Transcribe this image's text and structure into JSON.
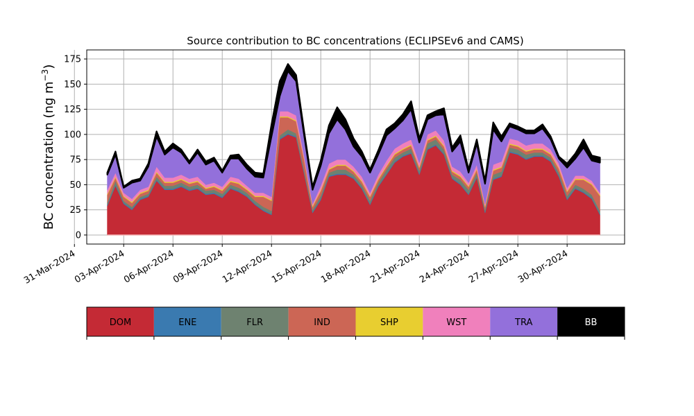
{
  "chart_data": {
    "type": "area",
    "stacked": true,
    "title": "Source contribution to BC concentrations (ECLIPSEv6 and CAMS)",
    "ylabel": "BC concentration (ng m",
    "ylabel_superscript": "−3",
    "ylabel_suffix": ")",
    "xlabel": "",
    "grid": true,
    "ylim": [
      -9,
      184
    ],
    "y_ticks": [
      0,
      25,
      50,
      75,
      100,
      125,
      150,
      175
    ],
    "xlim": [
      "2024-03-31T18:00",
      "2024-05-03T12:00"
    ],
    "x_ticks": [
      "2024-03-31",
      "2024-04-03",
      "2024-04-06",
      "2024-04-09",
      "2024-04-12",
      "2024-04-15",
      "2024-04-18",
      "2024-04-21",
      "2024-04-24",
      "2024-04-27",
      "2024-04-30"
    ],
    "x_tick_labels": [
      "31-Mar-2024",
      "03-Apr-2024",
      "06-Apr-2024",
      "09-Apr-2024",
      "12-Apr-2024",
      "15-Apr-2024",
      "18-Apr-2024",
      "21-Apr-2024",
      "24-Apr-2024",
      "27-Apr-2024",
      "30-Apr-2024"
    ],
    "legend_position": "below",
    "x": [
      "2024-04-02T00:00",
      "2024-04-02T12:00",
      "2024-04-03T00:00",
      "2024-04-03T12:00",
      "2024-04-04T00:00",
      "2024-04-04T12:00",
      "2024-04-05T00:00",
      "2024-04-05T12:00",
      "2024-04-06T00:00",
      "2024-04-06T12:00",
      "2024-04-07T00:00",
      "2024-04-07T12:00",
      "2024-04-08T00:00",
      "2024-04-08T12:00",
      "2024-04-09T00:00",
      "2024-04-09T12:00",
      "2024-04-10T00:00",
      "2024-04-10T12:00",
      "2024-04-11T00:00",
      "2024-04-11T12:00",
      "2024-04-12T00:00",
      "2024-04-12T12:00",
      "2024-04-13T00:00",
      "2024-04-13T12:00",
      "2024-04-14T00:00",
      "2024-04-14T12:00",
      "2024-04-15T00:00",
      "2024-04-15T12:00",
      "2024-04-16T00:00",
      "2024-04-16T12:00",
      "2024-04-17T00:00",
      "2024-04-17T12:00",
      "2024-04-18T00:00",
      "2024-04-18T12:00",
      "2024-04-19T00:00",
      "2024-04-19T12:00",
      "2024-04-20T00:00",
      "2024-04-20T12:00",
      "2024-04-21T00:00",
      "2024-04-21T12:00",
      "2024-04-22T00:00",
      "2024-04-22T12:00",
      "2024-04-23T00:00",
      "2024-04-23T12:00",
      "2024-04-24T00:00",
      "2024-04-24T12:00",
      "2024-04-25T00:00",
      "2024-04-25T12:00",
      "2024-04-26T00:00",
      "2024-04-26T12:00",
      "2024-04-27T00:00",
      "2024-04-27T12:00",
      "2024-04-28T00:00",
      "2024-04-28T12:00",
      "2024-04-29T00:00",
      "2024-04-29T12:00",
      "2024-04-30T00:00",
      "2024-04-30T12:00",
      "2024-05-01T00:00",
      "2024-05-01T12:00",
      "2024-05-02T00:00"
    ],
    "series": [
      {
        "name": "DOM",
        "color": "#c42a35",
        "values": [
          29,
          49,
          31,
          25,
          35,
          38,
          54,
          45,
          45,
          48,
          44,
          46,
          40,
          41,
          37,
          46,
          43,
          38,
          30,
          24,
          20,
          95,
          100,
          97,
          60,
          22,
          35,
          58,
          60,
          60,
          56,
          46,
          30,
          48,
          60,
          72,
          78,
          81,
          60,
          85,
          89,
          80,
          56,
          50,
          40,
          57,
          22,
          55,
          58,
          82,
          80,
          75,
          78,
          78,
          73,
          58,
          35,
          46,
          42,
          36,
          20
        ]
      },
      {
        "name": "ENE",
        "color": "#3a7ab0",
        "values": [
          1,
          1,
          1,
          1,
          1,
          1,
          1,
          1,
          1,
          1,
          1,
          1,
          1,
          1,
          1,
          1,
          1,
          1,
          1,
          1,
          1,
          1,
          1,
          1,
          1,
          1,
          1,
          1,
          1,
          1,
          1,
          1,
          1,
          1,
          1,
          1,
          1,
          1,
          1,
          1,
          1,
          1,
          1,
          1,
          1,
          1,
          1,
          1,
          1,
          1,
          1,
          1,
          1,
          1,
          1,
          1,
          1,
          1,
          1,
          1,
          1
        ]
      },
      {
        "name": "FLR",
        "color": "#6e8270",
        "values": [
          2,
          4,
          2,
          2,
          2,
          2,
          3,
          3,
          3,
          3,
          3,
          3,
          3,
          3,
          3,
          3,
          3,
          3,
          3,
          3,
          3,
          3,
          4,
          3,
          3,
          2,
          3,
          3,
          4,
          4,
          3,
          3,
          3,
          3,
          4,
          4,
          3,
          4,
          3,
          5,
          5,
          4,
          3,
          4,
          4,
          4,
          2,
          4,
          4,
          4,
          4,
          4,
          3,
          3,
          3,
          3,
          3,
          3,
          3,
          3,
          3
        ]
      },
      {
        "name": "IND",
        "color": "#cc6655",
        "values": [
          8,
          3,
          4,
          4,
          3,
          3,
          4,
          3,
          3,
          3,
          3,
          3,
          2,
          3,
          3,
          3,
          4,
          3,
          4,
          10,
          10,
          18,
          12,
          12,
          10,
          3,
          5,
          3,
          4,
          4,
          3,
          3,
          4,
          3,
          3,
          3,
          3,
          3,
          3,
          3,
          3,
          3,
          3,
          3,
          3,
          3,
          3,
          4,
          4,
          3,
          3,
          3,
          3,
          3,
          3,
          4,
          4,
          5,
          9,
          10,
          15
        ]
      },
      {
        "name": "SHP",
        "color": "#e8ce30",
        "values": [
          1,
          1,
          1,
          1,
          1,
          1,
          1,
          1,
          1,
          1,
          1,
          1,
          1,
          1,
          1,
          1,
          1,
          1,
          1,
          1,
          1,
          1,
          1,
          1,
          1,
          1,
          1,
          1,
          1,
          1,
          1,
          1,
          1,
          1,
          1,
          1,
          1,
          1,
          1,
          1,
          1,
          1,
          1,
          1,
          1,
          1,
          1,
          1,
          1,
          1,
          1,
          1,
          1,
          1,
          1,
          1,
          1,
          1,
          1,
          1,
          1
        ]
      },
      {
        "name": "WST",
        "color": "#f080bc",
        "values": [
          4,
          4,
          3,
          3,
          3,
          3,
          5,
          4,
          4,
          4,
          4,
          4,
          3,
          3,
          3,
          4,
          4,
          3,
          3,
          3,
          3,
          5,
          5,
          5,
          3,
          2,
          4,
          5,
          5,
          5,
          4,
          4,
          3,
          4,
          5,
          5,
          5,
          5,
          4,
          5,
          5,
          5,
          4,
          4,
          3,
          4,
          2,
          5,
          5,
          5,
          5,
          5,
          5,
          5,
          4,
          4,
          3,
          3,
          3,
          3,
          2
        ]
      },
      {
        "name": "TRA",
        "color": "#9370db",
        "values": [
          15,
          18,
          5,
          16,
          9,
          20,
          30,
          23,
          30,
          22,
          15,
          24,
          20,
          22,
          14,
          18,
          20,
          17,
          16,
          15,
          60,
          15,
          40,
          34,
          20,
          14,
          20,
          30,
          40,
          30,
          20,
          20,
          20,
          20,
          25,
          20,
          23,
          30,
          20,
          15,
          15,
          26,
          15,
          30,
          10,
          21,
          20,
          35,
          20,
          12,
          11,
          12,
          10,
          15,
          10,
          5,
          20,
          17,
          28,
          20,
          30
        ]
      },
      {
        "name": "BB",
        "color": "#000000",
        "values": [
          2,
          3,
          1,
          2,
          2,
          3,
          5,
          3,
          4,
          3,
          2,
          3,
          3,
          3,
          2,
          3,
          4,
          4,
          4,
          4,
          12,
          15,
          7,
          6,
          4,
          3,
          5,
          8,
          12,
          10,
          8,
          5,
          3,
          4,
          6,
          5,
          6,
          8,
          4,
          4,
          4,
          6,
          4,
          6,
          3,
          4,
          3,
          7,
          5,
          3,
          3,
          3,
          3,
          4,
          3,
          2,
          4,
          5,
          8,
          5,
          5
        ]
      }
    ]
  }
}
